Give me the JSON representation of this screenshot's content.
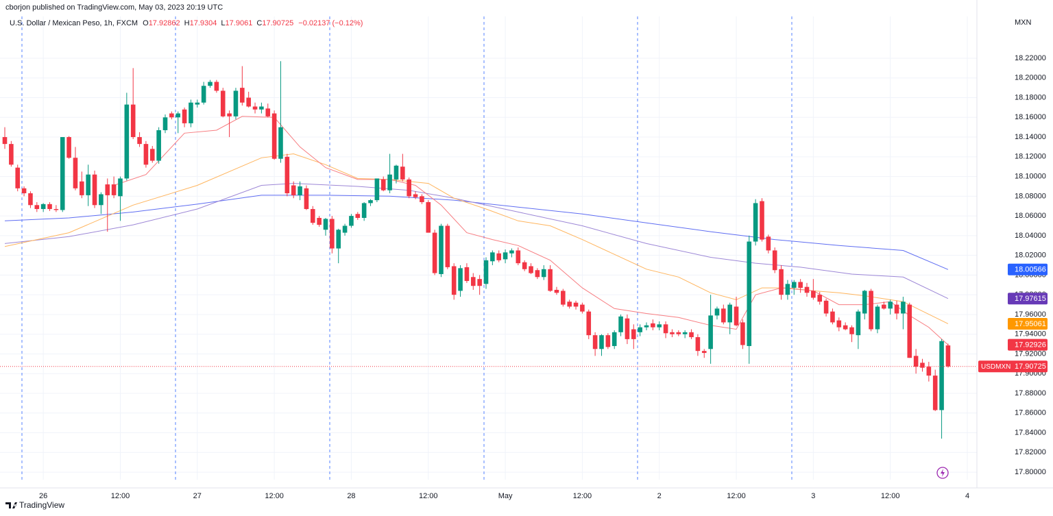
{
  "header": "cborjon published on TradingView.com, May 03, 2023 20:19 UTC",
  "footer": "TradingView",
  "chart_data": {
    "type": "candlestick",
    "title": "U.S. Dollar / Mexican Peso, 1h, FXCM",
    "ohlc_prefixes": [
      "O",
      "H",
      "L",
      "C"
    ],
    "change_label": "−0.02137 (−0.12%)",
    "symbol": "USDMXN",
    "axis_unit": "MXN",
    "up_color": "#089981",
    "down_color": "#f23645",
    "grid": true,
    "ylim": [
      17.7924,
      18.2624
    ],
    "yticks": [
      {
        "value": 17.8,
        "label": "17.80000"
      },
      {
        "value": 17.82,
        "label": "17.82000"
      },
      {
        "value": 17.84,
        "label": "17.84000"
      },
      {
        "value": 17.86,
        "label": "17.86000"
      },
      {
        "value": 17.88,
        "label": "17.88000"
      },
      {
        "value": 17.9,
        "label": "17.90000"
      },
      {
        "value": 17.92,
        "label": "17.92000"
      },
      {
        "value": 17.94,
        "label": "17.94000"
      },
      {
        "value": 17.96,
        "label": "17.96000"
      },
      {
        "value": 17.98,
        "label": "17.98000"
      },
      {
        "value": 18.0,
        "label": "18.00000"
      },
      {
        "value": 18.02,
        "label": "18.02000"
      },
      {
        "value": 18.04,
        "label": "18.04000"
      },
      {
        "value": 18.06,
        "label": "18.06000"
      },
      {
        "value": 18.08,
        "label": "18.08000"
      },
      {
        "value": 18.1,
        "label": "18.10000"
      },
      {
        "value": 18.12,
        "label": "18.12000"
      },
      {
        "value": 18.14,
        "label": "18.14000"
      },
      {
        "value": 18.16,
        "label": "18.16000"
      },
      {
        "value": 18.18,
        "label": "18.18000"
      },
      {
        "value": 18.2,
        "label": "18.20000"
      },
      {
        "value": 18.22,
        "label": "18.22000"
      }
    ],
    "xlim": [
      0,
      152
    ],
    "xticks": [
      {
        "value": 6,
        "label": "26"
      },
      {
        "value": 18,
        "label": "12:00"
      },
      {
        "value": 30,
        "label": "27"
      },
      {
        "value": 42,
        "label": "12:00"
      },
      {
        "value": 54,
        "label": "28"
      },
      {
        "value": 66,
        "label": "12:00"
      },
      {
        "value": 78,
        "label": "May"
      },
      {
        "value": 90,
        "label": "12:00"
      },
      {
        "value": 102,
        "label": "2"
      },
      {
        "value": 114,
        "label": "12:00"
      },
      {
        "value": 126,
        "label": "3"
      },
      {
        "value": 138,
        "label": "12:00"
      },
      {
        "value": 150,
        "label": "4"
      }
    ],
    "candles": [
      [
        18.14,
        18.15,
        18.128,
        18.133
      ],
      [
        18.133,
        18.136,
        18.11,
        18.112
      ],
      [
        18.109,
        18.112,
        18.085,
        18.088
      ],
      [
        18.088,
        18.09,
        18.08,
        18.083
      ],
      [
        18.083,
        18.085,
        18.068,
        18.071
      ],
      [
        18.071,
        18.074,
        18.064,
        18.067
      ],
      [
        18.067,
        18.073,
        18.064,
        18.072
      ],
      [
        18.072,
        18.074,
        18.065,
        18.067
      ],
      [
        18.067,
        18.071,
        18.064,
        18.066
      ],
      [
        18.066,
        18.14,
        18.064,
        18.14
      ],
      [
        18.14,
        18.141,
        18.118,
        18.119
      ],
      [
        18.119,
        18.13,
        18.086,
        18.088
      ],
      [
        18.095,
        18.105,
        18.078,
        18.081
      ],
      [
        18.081,
        18.112,
        18.07,
        18.102
      ],
      [
        18.102,
        18.106,
        18.068,
        18.071
      ],
      [
        18.071,
        18.084,
        18.062,
        18.082
      ],
      [
        18.092,
        18.098,
        18.044,
        18.081
      ],
      [
        18.092,
        18.1,
        18.078,
        18.081
      ],
      [
        18.08,
        18.1,
        18.055,
        18.098
      ],
      [
        18.098,
        18.185,
        18.096,
        18.173
      ],
      [
        18.173,
        18.21,
        18.138,
        18.14
      ],
      [
        18.14,
        18.145,
        18.13,
        18.133
      ],
      [
        18.133,
        18.136,
        18.109,
        18.112
      ],
      [
        18.128,
        18.131,
        18.114,
        18.116
      ],
      [
        18.116,
        18.15,
        18.113,
        18.147
      ],
      [
        18.147,
        18.163,
        18.144,
        18.16
      ],
      [
        18.164,
        18.166,
        18.158,
        18.16
      ],
      [
        18.16,
        18.166,
        18.144,
        18.164
      ],
      [
        18.168,
        18.17,
        18.15,
        18.154
      ],
      [
        18.154,
        18.178,
        18.15,
        18.175
      ],
      [
        18.173,
        18.178,
        18.17,
        18.175
      ],
      [
        18.175,
        18.196,
        18.173,
        18.192
      ],
      [
        18.192,
        18.198,
        18.19,
        18.196
      ],
      [
        18.196,
        18.198,
        18.185,
        18.187
      ],
      [
        18.187,
        18.19,
        18.16,
        18.161
      ],
      [
        18.164,
        18.167,
        18.14,
        18.161
      ],
      [
        18.161,
        18.19,
        18.158,
        18.187
      ],
      [
        18.19,
        18.212,
        18.172,
        18.175
      ],
      [
        18.18,
        18.186,
        18.17,
        18.171
      ],
      [
        18.171,
        18.175,
        18.164,
        18.168
      ],
      [
        18.168,
        18.175,
        18.164,
        18.171
      ],
      [
        18.169,
        18.174,
        18.16,
        18.161
      ],
      [
        18.164,
        18.167,
        18.117,
        18.118
      ],
      [
        18.118,
        18.217,
        18.114,
        18.15
      ],
      [
        18.12,
        18.123,
        18.08,
        18.083
      ],
      [
        18.091,
        18.095,
        18.078,
        18.081
      ],
      [
        18.081,
        18.095,
        18.076,
        18.09
      ],
      [
        18.088,
        18.091,
        18.066,
        18.067
      ],
      [
        18.067,
        18.07,
        18.051,
        18.053
      ],
      [
        18.058,
        18.06,
        18.049,
        18.051
      ],
      [
        18.046,
        18.058,
        18.04,
        18.057
      ],
      [
        18.057,
        18.06,
        18.022,
        18.027
      ],
      [
        18.027,
        18.047,
        18.012,
        18.046
      ],
      [
        18.043,
        18.052,
        18.04,
        18.05
      ],
      [
        18.05,
        18.062,
        18.048,
        18.06
      ],
      [
        18.062,
        18.064,
        18.056,
        18.058
      ],
      [
        18.058,
        18.074,
        18.055,
        18.073
      ],
      [
        18.073,
        18.077,
        18.07,
        18.076
      ],
      [
        18.076,
        18.098,
        18.074,
        18.098
      ],
      [
        18.097,
        18.1,
        18.085,
        18.086
      ],
      [
        18.086,
        18.123,
        18.083,
        18.102
      ],
      [
        18.097,
        18.112,
        18.093,
        18.111
      ],
      [
        18.11,
        18.123,
        18.095,
        18.097
      ],
      [
        18.097,
        18.099,
        18.078,
        18.08
      ],
      [
        18.082,
        18.085,
        18.077,
        18.079
      ],
      [
        18.08,
        18.082,
        18.072,
        18.074
      ],
      [
        18.074,
        18.076,
        18.043,
        18.043
      ],
      [
        18.043,
        18.046,
        18.0,
        18.002
      ],
      [
        18.001,
        18.052,
        17.998,
        18.05
      ],
      [
        18.05,
        18.052,
        18.006,
        18.008
      ],
      [
        18.009,
        18.012,
        17.975,
        17.98
      ],
      [
        17.984,
        18.01,
        17.978,
        18.007
      ],
      [
        18.008,
        18.012,
        17.992,
        17.994
      ],
      [
        17.998,
        18.002,
        17.985,
        17.989
      ],
      [
        17.996,
        18.0,
        17.98,
        17.989
      ],
      [
        17.991,
        18.018,
        17.986,
        18.015
      ],
      [
        18.014,
        18.025,
        18.01,
        18.023
      ],
      [
        18.022,
        18.025,
        18.013,
        18.015
      ],
      [
        18.016,
        18.026,
        18.012,
        18.023
      ],
      [
        18.022,
        18.027,
        18.018,
        18.025
      ],
      [
        18.025,
        18.028,
        18.01,
        18.012
      ],
      [
        18.013,
        18.015,
        18.004,
        18.006
      ],
      [
        18.009,
        18.012,
        18.001,
        18.002
      ],
      [
        18.005,
        18.007,
        17.996,
        17.998
      ],
      [
        17.998,
        18.01,
        17.995,
        18.006
      ],
      [
        18.006,
        18.01,
        17.983,
        17.984
      ],
      [
        17.985,
        17.988,
        17.98,
        17.982
      ],
      [
        17.984,
        17.986,
        17.968,
        17.97
      ],
      [
        17.973,
        17.975,
        17.966,
        17.968
      ],
      [
        17.972,
        17.974,
        17.965,
        17.968
      ],
      [
        17.97,
        17.972,
        17.961,
        17.963
      ],
      [
        17.963,
        17.965,
        17.935,
        17.939
      ],
      [
        17.939,
        17.942,
        17.918,
        17.925
      ],
      [
        17.925,
        17.94,
        17.918,
        17.939
      ],
      [
        17.939,
        17.941,
        17.925,
        17.927
      ],
      [
        17.928,
        17.944,
        17.925,
        17.942
      ],
      [
        17.942,
        17.96,
        17.938,
        17.958
      ],
      [
        17.956,
        17.96,
        17.93,
        17.935
      ],
      [
        17.945,
        17.95,
        17.925,
        17.935
      ],
      [
        17.942,
        17.95,
        17.938,
        17.947
      ],
      [
        17.947,
        17.952,
        17.944,
        17.949
      ],
      [
        17.951,
        17.955,
        17.944,
        17.947
      ],
      [
        17.947,
        17.953,
        17.944,
        17.95
      ],
      [
        17.95,
        17.953,
        17.936,
        17.941
      ],
      [
        17.942,
        17.945,
        17.937,
        17.94
      ],
      [
        17.942,
        17.944,
        17.938,
        17.94
      ],
      [
        17.94,
        17.944,
        17.936,
        17.942
      ],
      [
        17.942,
        17.945,
        17.935,
        17.937
      ],
      [
        17.937,
        17.94,
        17.918,
        17.923
      ],
      [
        17.923,
        17.925,
        17.916,
        17.921
      ],
      [
        17.925,
        17.98,
        17.91,
        17.959
      ],
      [
        17.959,
        17.968,
        17.955,
        17.966
      ],
      [
        17.966,
        17.97,
        17.95,
        17.952
      ],
      [
        17.952,
        17.972,
        17.94,
        17.97
      ],
      [
        17.968,
        17.978,
        17.948,
        17.949
      ],
      [
        17.952,
        17.955,
        17.925,
        17.929
      ],
      [
        17.928,
        18.04,
        17.91,
        18.034
      ],
      [
        18.034,
        18.077,
        18.03,
        18.073
      ],
      [
        18.075,
        18.078,
        18.034,
        18.036
      ],
      [
        18.039,
        18.041,
        18.022,
        18.025
      ],
      [
        18.025,
        18.028,
        18.002,
        18.005
      ],
      [
        18.006,
        18.01,
        17.975,
        17.98
      ],
      [
        17.98,
        17.995,
        17.975,
        17.991
      ],
      [
        17.987,
        17.995,
        17.98,
        17.993
      ],
      [
        17.993,
        17.996,
        17.982,
        17.987
      ],
      [
        17.988,
        17.992,
        17.978,
        17.982
      ],
      [
        17.984,
        17.996,
        17.975,
        17.977
      ],
      [
        17.98,
        17.983,
        17.97,
        17.973
      ],
      [
        17.974,
        17.976,
        17.958,
        17.961
      ],
      [
        17.963,
        17.966,
        17.95,
        17.952
      ],
      [
        17.954,
        17.957,
        17.943,
        17.947
      ],
      [
        17.949,
        17.952,
        17.944,
        17.945
      ],
      [
        17.947,
        17.949,
        17.932,
        17.94
      ],
      [
        17.939,
        17.965,
        17.925,
        17.963
      ],
      [
        17.961,
        17.985,
        17.955,
        17.984
      ],
      [
        17.984,
        17.986,
        17.943,
        17.945
      ],
      [
        17.945,
        17.97,
        17.941,
        17.968
      ],
      [
        17.97,
        17.973,
        17.965,
        17.966
      ],
      [
        17.966,
        17.975,
        17.96,
        17.973
      ],
      [
        17.97,
        17.974,
        17.955,
        17.961
      ],
      [
        17.961,
        17.978,
        17.945,
        17.973
      ],
      [
        17.97,
        17.972,
        17.916,
        17.916
      ],
      [
        17.918,
        17.925,
        17.9,
        17.907
      ],
      [
        17.911,
        17.915,
        17.902,
        17.906
      ],
      [
        17.907,
        17.912,
        17.892,
        17.898
      ],
      [
        17.898,
        17.904,
        17.862,
        17.863
      ],
      [
        17.863,
        17.935,
        17.834,
        17.933
      ],
      [
        17.92862,
        17.9304,
        17.9061,
        17.90725
      ]
    ],
    "lines": [
      {
        "color": "#2962ff",
        "line_color": "#5d6cf2",
        "x": [
          0,
          10,
          20,
          30,
          40,
          50,
          60,
          70,
          80,
          90,
          100,
          110,
          120,
          130,
          140,
          147
        ],
        "values": [
          18.055,
          18.058,
          18.064,
          18.072,
          18.081,
          18.081,
          18.08,
          18.076,
          18.069,
          18.062,
          18.053,
          18.044,
          18.036,
          18.03,
          18.025,
          18.00566
        ]
      },
      {
        "color": "#673ab7",
        "line_color": "#9c86d6",
        "x": [
          0,
          10,
          20,
          30,
          40,
          45,
          55,
          63,
          70,
          80,
          90,
          100,
          110,
          117,
          124,
          132,
          140,
          147
        ],
        "values": [
          18.032,
          18.039,
          18.051,
          18.067,
          18.091,
          18.093,
          18.09,
          18.086,
          18.078,
          18.064,
          18.05,
          18.032,
          18.018,
          18.012,
          18.008,
          18.001,
          17.998,
          17.97615
        ]
      },
      {
        "color": "#ff9800",
        "line_color": "#ffb45c",
        "x": [
          0,
          10,
          20,
          30,
          40,
          45,
          50,
          55,
          60,
          66,
          70,
          75,
          80,
          85,
          90,
          95,
          100,
          105,
          110,
          114,
          118,
          122,
          126,
          130,
          134,
          140,
          147
        ],
        "values": [
          18.029,
          18.043,
          18.071,
          18.091,
          18.119,
          18.123,
          18.112,
          18.098,
          18.097,
          18.093,
          18.078,
          18.067,
          18.055,
          18.05,
          18.036,
          18.021,
          18.006,
          17.998,
          17.982,
          17.975,
          17.987,
          17.987,
          17.984,
          17.982,
          17.979,
          17.973,
          17.95061
        ]
      },
      {
        "color": "#f23645",
        "line_color": "#f77c80",
        "x": [
          17,
          22,
          28,
          33,
          37,
          42,
          46,
          50,
          55,
          60,
          64,
          68,
          72,
          76,
          80,
          85,
          90,
          95,
          100,
          105,
          110,
          114,
          117,
          121,
          126,
          130,
          134,
          138,
          141,
          144,
          147
        ],
        "values": [
          18.091,
          18.102,
          18.144,
          18.147,
          18.161,
          18.16,
          18.13,
          18.109,
          18.097,
          18.097,
          18.091,
          18.071,
          18.043,
          18.036,
          18.03,
          18.015,
          17.987,
          17.966,
          17.961,
          17.957,
          17.949,
          17.945,
          17.98,
          17.987,
          17.984,
          17.97,
          17.97,
          17.973,
          17.959,
          17.947,
          17.92926
        ]
      }
    ]
  }
}
